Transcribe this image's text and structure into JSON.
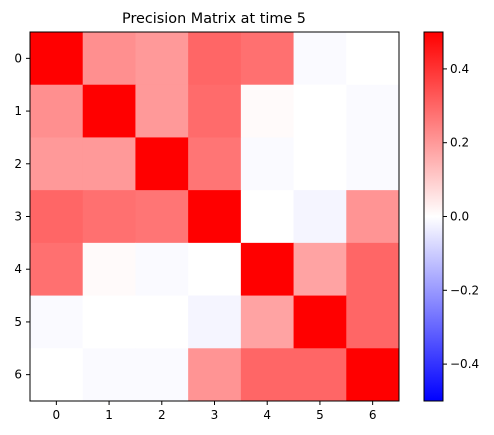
{
  "chart_data": {
    "type": "heatmap",
    "title": "Precision Matrix at time 5",
    "xlabel": "",
    "ylabel": "",
    "x_tick_labels": [
      "0",
      "1",
      "2",
      "3",
      "4",
      "5",
      "6"
    ],
    "y_tick_labels": [
      "0",
      "1",
      "2",
      "3",
      "4",
      "5",
      "6"
    ],
    "values": [
      [
        0.5,
        0.22,
        0.2,
        0.3,
        0.28,
        -0.01,
        0.0
      ],
      [
        0.22,
        0.5,
        0.2,
        0.29,
        0.01,
        0.0,
        -0.01
      ],
      [
        0.2,
        0.2,
        0.5,
        0.27,
        -0.01,
        0.0,
        -0.01
      ],
      [
        0.3,
        0.28,
        0.27,
        0.5,
        0.0,
        -0.02,
        0.21
      ],
      [
        0.28,
        0.01,
        -0.01,
        0.0,
        0.5,
        0.18,
        0.3
      ],
      [
        -0.01,
        0.0,
        0.0,
        -0.02,
        0.18,
        0.5,
        0.3
      ],
      [
        0.0,
        -0.01,
        -0.01,
        0.21,
        0.3,
        0.3,
        0.5
      ]
    ],
    "colormap": "bwr",
    "vmin": -0.5,
    "vmax": 0.5,
    "colorbar": {
      "ticks": [
        0.4,
        0.2,
        0.0,
        -0.2,
        -0.4
      ],
      "tick_labels": [
        "0.4",
        "0.2",
        "0.0",
        "−0.2",
        "−0.4"
      ]
    },
    "grid": false,
    "legend": "none"
  }
}
